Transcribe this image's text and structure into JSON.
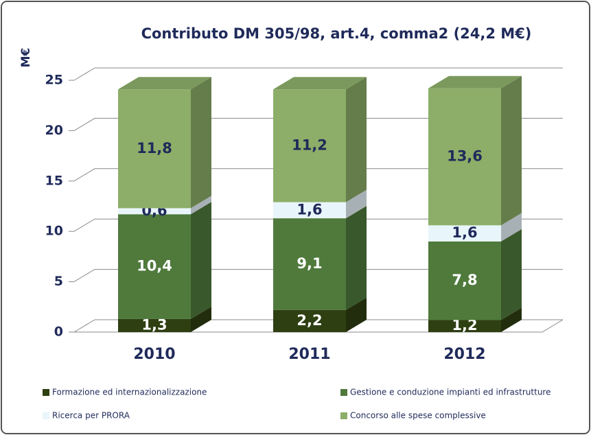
{
  "chart_data": {
    "type": "bar",
    "stacked": true,
    "title": "Contributo DM 305/98, art.4, comma2 (24,2 M€)",
    "y_label": "M€",
    "categories": [
      "2010",
      "2011",
      "2012"
    ],
    "series": [
      {
        "name": "Formazione ed internazionalizzazione",
        "color": "#2e3f12",
        "label_color": "#ffffff",
        "values": [
          1.3,
          2.2,
          1.2
        ],
        "value_labels": [
          "1,3",
          "2,2",
          "1,2"
        ]
      },
      {
        "name": "Gestione e conduzione impianti ed infrastrutture",
        "color": "#4f7a3c",
        "label_color": "#ffffff",
        "values": [
          10.4,
          9.1,
          7.8
        ],
        "value_labels": [
          "10,4",
          "9,1",
          "7,8"
        ]
      },
      {
        "name": "Ricerca per PRORA",
        "color": "#e8f5fa",
        "label_color": "#1f2a5a",
        "values": [
          0.6,
          1.6,
          1.6
        ],
        "value_labels": [
          "0,6",
          "1,6",
          "1,6"
        ]
      },
      {
        "name": "Concorso alle spese complessive",
        "color": "#8cae68",
        "label_color": "#1f2a5a",
        "values": [
          11.8,
          11.2,
          13.6
        ],
        "value_labels": [
          "11,8",
          "11,2",
          "13,6"
        ]
      }
    ],
    "ylim": [
      0,
      25
    ],
    "yticks": [
      0,
      5,
      10,
      15,
      20,
      25
    ],
    "grid": true
  }
}
